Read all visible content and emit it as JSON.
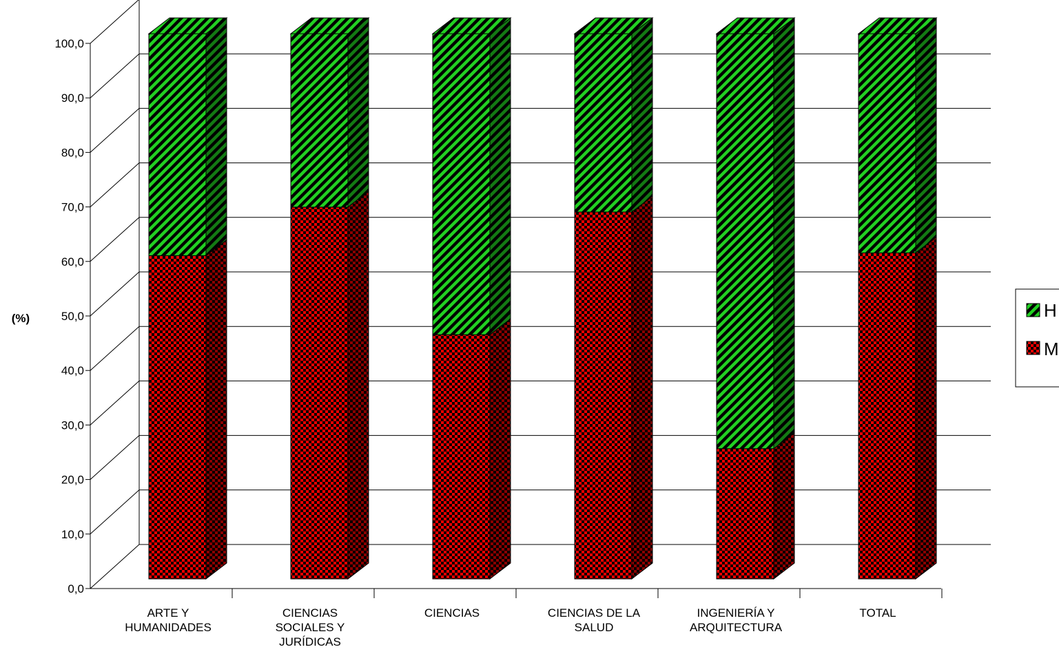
{
  "chart_data": {
    "type": "bar",
    "stacked": true,
    "three_d": true,
    "ylabel": "(%)",
    "xlabel": "",
    "ylim": [
      0,
      100
    ],
    "y_ticks": [
      "0,0",
      "10,0",
      "20,0",
      "30,0",
      "40,0",
      "50,0",
      "60,0",
      "70,0",
      "80,0",
      "90,0",
      "100,0"
    ],
    "grid": true,
    "legend_position": "right",
    "categories": [
      [
        "ARTE Y",
        "HUMANIDADES"
      ],
      [
        "CIENCIAS",
        "SOCIALES Y",
        "JURÍDICAS"
      ],
      [
        "CIENCIAS"
      ],
      [
        "CIENCIAS DE LA",
        "SALUD"
      ],
      [
        "INGENIERÍA Y",
        "ARQUITECTURA"
      ],
      [
        "TOTAL"
      ]
    ],
    "series": [
      {
        "name": "M",
        "color": "#e00000",
        "pattern": "checker",
        "values": [
          59.3,
          68.2,
          44.8,
          67.3,
          23.9,
          59.8
        ]
      },
      {
        "name": "H",
        "color": "#22cc22",
        "pattern": "diagonal-stripes",
        "values": [
          40.7,
          31.8,
          55.2,
          32.7,
          76.1,
          40.2
        ]
      }
    ],
    "legend": [
      "H",
      "M"
    ]
  }
}
